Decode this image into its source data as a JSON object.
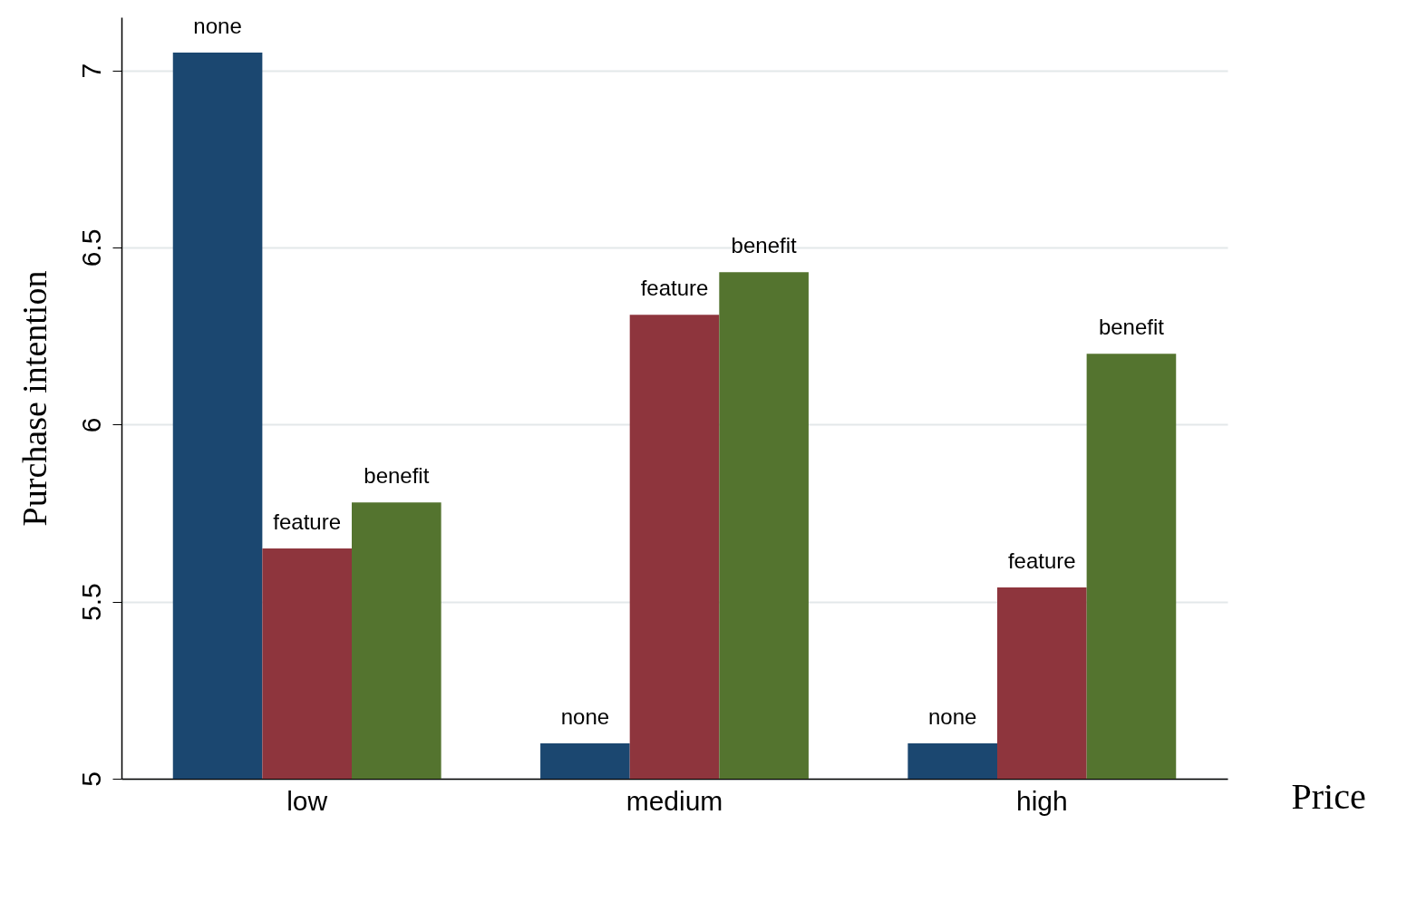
{
  "chart_data": {
    "type": "bar",
    "xlabel": "Price",
    "ylabel": "Purchase intention",
    "categories": [
      "low",
      "medium",
      "high"
    ],
    "series": [
      {
        "name": "none",
        "color": "#1b4770",
        "values": [
          7.05,
          5.1,
          5.1
        ]
      },
      {
        "name": "feature",
        "color": "#8e353d",
        "values": [
          5.65,
          6.31,
          5.54
        ]
      },
      {
        "name": "benefit",
        "color": "#54742f",
        "values": [
          5.78,
          6.43,
          6.2
        ]
      }
    ],
    "ylim": [
      5,
      7.15
    ],
    "yticks": [
      5,
      5.5,
      6,
      6.5,
      7
    ],
    "grid": "y",
    "legend": false
  }
}
